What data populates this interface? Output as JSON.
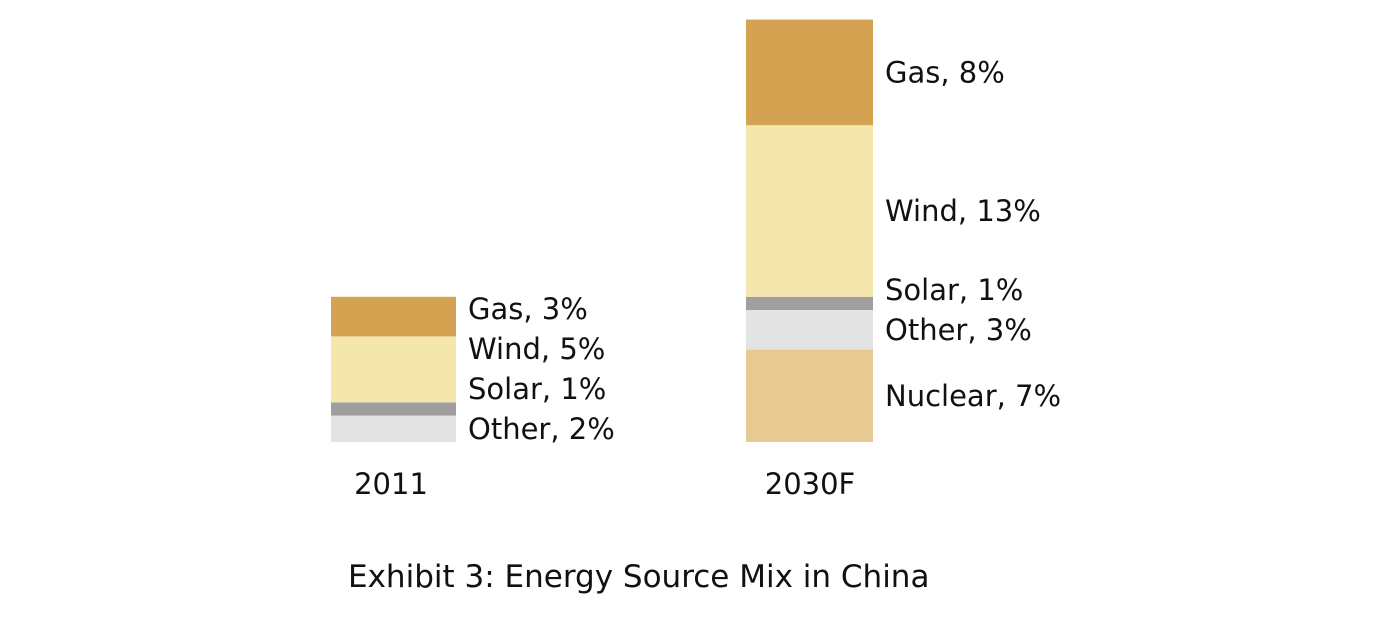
{
  "chart_data": {
    "type": "bar",
    "stacked": true,
    "title": "Exhibit 3: Energy Source Mix in China",
    "xlabel": "",
    "ylabel": "",
    "categories": [
      "2011",
      "2030F"
    ],
    "bars": [
      {
        "category": "2011",
        "segments": [
          {
            "name": "Other",
            "value": 2,
            "label": "Other, 2%",
            "color": "#E3E3E3"
          },
          {
            "name": "Solar",
            "value": 1,
            "label": "Solar, 1%",
            "color": "#A09E9E"
          },
          {
            "name": "Wind",
            "value": 5,
            "label": "Wind, 5%",
            "color": "#F5E6AE"
          },
          {
            "name": "Gas",
            "value": 3,
            "label": "Gas, 3%",
            "color": "#D4A352"
          }
        ]
      },
      {
        "category": "2030F",
        "segments": [
          {
            "name": "Nuclear",
            "value": 7,
            "label": "Nuclear, 7%",
            "color": "#E8C991"
          },
          {
            "name": "Other",
            "value": 3,
            "label": "Other, 3%",
            "color": "#E3E3E3"
          },
          {
            "name": "Solar",
            "value": 1,
            "label": "Solar, 1%",
            "color": "#A09E9E"
          },
          {
            "name": "Wind",
            "value": 13,
            "label": "Wind, 13%",
            "color": "#F5E6AE"
          },
          {
            "name": "Gas",
            "value": 8,
            "label": "Gas, 8%",
            "color": "#D4A352"
          }
        ]
      }
    ],
    "grid": false,
    "legend": "none"
  }
}
